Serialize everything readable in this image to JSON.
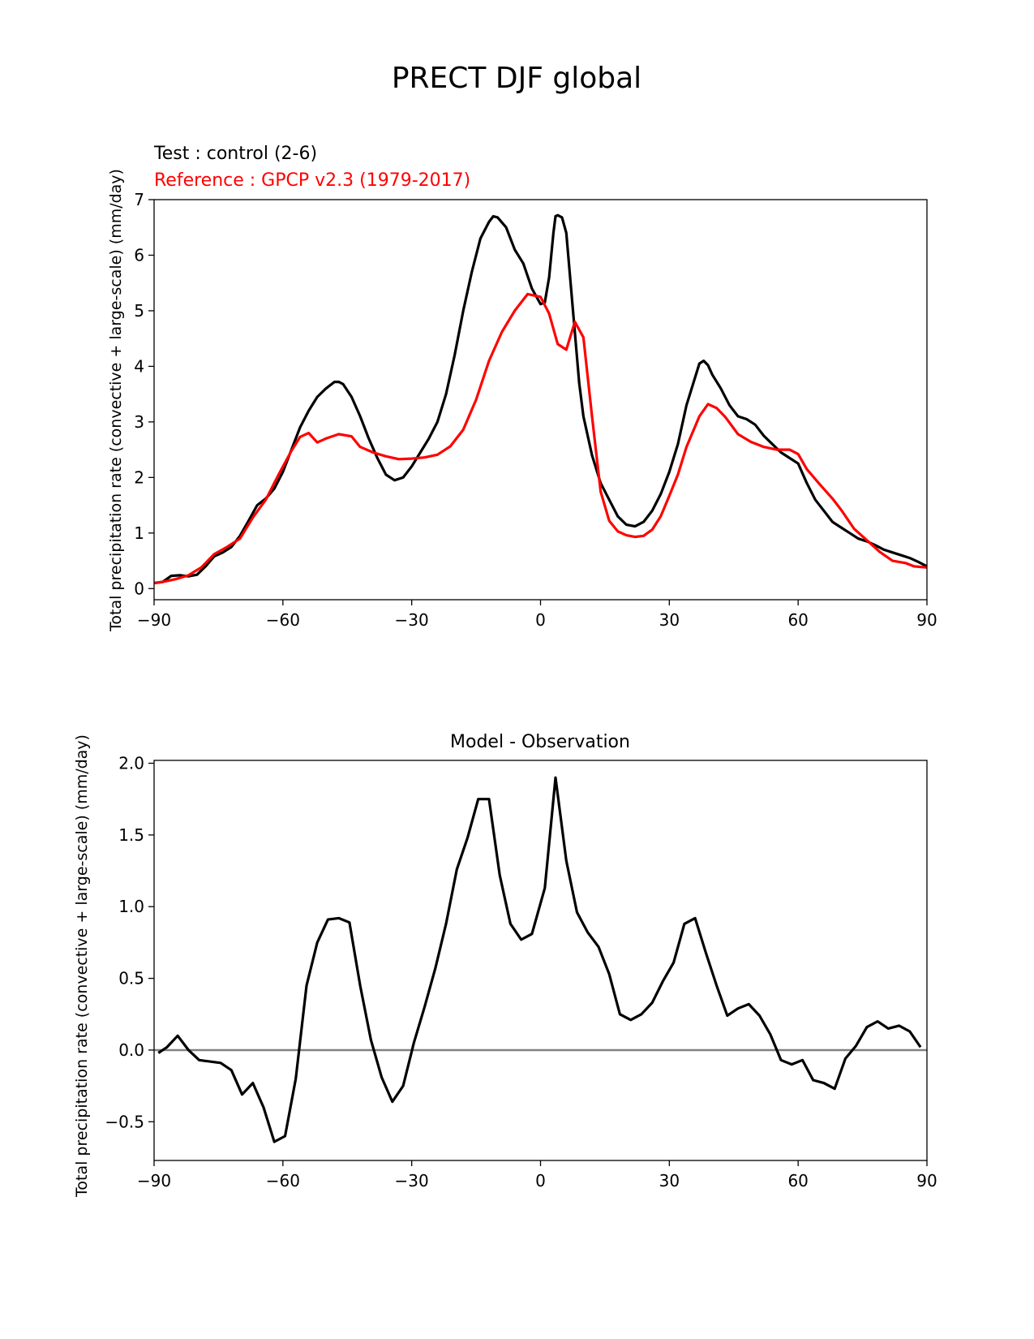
{
  "figure": {
    "title": "PRECT DJF global"
  },
  "chart_data": [
    {
      "type": "line",
      "test_label": "Test : control (2-6)",
      "reference_label": "Reference : GPCP v2.3 (1979-2017)",
      "xlabel": "",
      "ylabel": "Total precipitation rate (convective + large-scale) (mm/day)",
      "xlim": [
        -90,
        90
      ],
      "ylim": [
        -0.2,
        7
      ],
      "xticks": [
        -90,
        -60,
        -30,
        0,
        30,
        60,
        90
      ],
      "xtick_labels": [
        "−90",
        "−60",
        "−30",
        "0",
        "30",
        "60",
        "90"
      ],
      "yticks": [
        0,
        1,
        2,
        3,
        4,
        5,
        6,
        7
      ],
      "ytick_labels": [
        "0",
        "1",
        "2",
        "3",
        "4",
        "5",
        "6",
        "7"
      ],
      "series": [
        {
          "color": "#000000",
          "points": [
            [
              -90,
              0.1
            ],
            [
              -88,
              0.12
            ],
            [
              -86,
              0.23
            ],
            [
              -84,
              0.24
            ],
            [
              -82,
              0.22
            ],
            [
              -80,
              0.25
            ],
            [
              -78,
              0.4
            ],
            [
              -76,
              0.58
            ],
            [
              -74,
              0.65
            ],
            [
              -72,
              0.75
            ],
            [
              -70,
              0.95
            ],
            [
              -68,
              1.22
            ],
            [
              -66,
              1.5
            ],
            [
              -64,
              1.62
            ],
            [
              -62,
              1.8
            ],
            [
              -60,
              2.1
            ],
            [
              -58,
              2.5
            ],
            [
              -56,
              2.9
            ],
            [
              -54,
              3.2
            ],
            [
              -52,
              3.45
            ],
            [
              -50,
              3.6
            ],
            [
              -48,
              3.72
            ],
            [
              -47,
              3.72
            ],
            [
              -46,
              3.68
            ],
            [
              -44,
              3.45
            ],
            [
              -42,
              3.1
            ],
            [
              -40,
              2.7
            ],
            [
              -38,
              2.35
            ],
            [
              -36,
              2.05
            ],
            [
              -34,
              1.95
            ],
            [
              -32,
              2.0
            ],
            [
              -30,
              2.2
            ],
            [
              -28,
              2.45
            ],
            [
              -26,
              2.7
            ],
            [
              -24,
              3.0
            ],
            [
              -22,
              3.5
            ],
            [
              -20,
              4.2
            ],
            [
              -18,
              5.0
            ],
            [
              -16,
              5.7
            ],
            [
              -14,
              6.3
            ],
            [
              -12,
              6.6
            ],
            [
              -11,
              6.7
            ],
            [
              -10,
              6.68
            ],
            [
              -8,
              6.5
            ],
            [
              -6,
              6.1
            ],
            [
              -4,
              5.85
            ],
            [
              -2,
              5.4
            ],
            [
              0,
              5.12
            ],
            [
              1,
              5.15
            ],
            [
              2,
              5.6
            ],
            [
              3,
              6.4
            ],
            [
              3.5,
              6.7
            ],
            [
              4,
              6.72
            ],
            [
              5,
              6.68
            ],
            [
              6,
              6.4
            ],
            [
              7,
              5.5
            ],
            [
              8,
              4.6
            ],
            [
              9,
              3.7
            ],
            [
              10,
              3.1
            ],
            [
              12,
              2.4
            ],
            [
              14,
              1.9
            ],
            [
              16,
              1.6
            ],
            [
              18,
              1.3
            ],
            [
              20,
              1.15
            ],
            [
              22,
              1.12
            ],
            [
              24,
              1.2
            ],
            [
              26,
              1.4
            ],
            [
              28,
              1.7
            ],
            [
              30,
              2.1
            ],
            [
              32,
              2.6
            ],
            [
              34,
              3.3
            ],
            [
              36,
              3.8
            ],
            [
              37,
              4.05
            ],
            [
              38,
              4.1
            ],
            [
              39,
              4.02
            ],
            [
              40,
              3.85
            ],
            [
              42,
              3.6
            ],
            [
              44,
              3.3
            ],
            [
              46,
              3.1
            ],
            [
              48,
              3.05
            ],
            [
              50,
              2.95
            ],
            [
              52,
              2.75
            ],
            [
              54,
              2.6
            ],
            [
              56,
              2.45
            ],
            [
              58,
              2.35
            ],
            [
              60,
              2.25
            ],
            [
              62,
              1.9
            ],
            [
              64,
              1.6
            ],
            [
              66,
              1.4
            ],
            [
              68,
              1.2
            ],
            [
              70,
              1.1
            ],
            [
              72,
              1.0
            ],
            [
              74,
              0.9
            ],
            [
              76,
              0.85
            ],
            [
              78,
              0.78
            ],
            [
              80,
              0.7
            ],
            [
              82,
              0.65
            ],
            [
              84,
              0.6
            ],
            [
              86,
              0.55
            ],
            [
              88,
              0.48
            ],
            [
              90,
              0.4
            ]
          ]
        },
        {
          "color": "#ff0000",
          "points": [
            [
              -90,
              0.1
            ],
            [
              -88,
              0.12
            ],
            [
              -85,
              0.17
            ],
            [
              -82,
              0.24
            ],
            [
              -79,
              0.38
            ],
            [
              -76,
              0.62
            ],
            [
              -73,
              0.75
            ],
            [
              -70,
              0.9
            ],
            [
              -67,
              1.28
            ],
            [
              -64,
              1.6
            ],
            [
              -61,
              2.05
            ],
            [
              -58,
              2.48
            ],
            [
              -56,
              2.73
            ],
            [
              -54,
              2.8
            ],
            [
              -52,
              2.63
            ],
            [
              -50,
              2.7
            ],
            [
              -47,
              2.78
            ],
            [
              -44,
              2.74
            ],
            [
              -42,
              2.55
            ],
            [
              -39,
              2.45
            ],
            [
              -36,
              2.38
            ],
            [
              -33,
              2.33
            ],
            [
              -30,
              2.34
            ],
            [
              -27,
              2.36
            ],
            [
              -24,
              2.41
            ],
            [
              -21,
              2.56
            ],
            [
              -18,
              2.86
            ],
            [
              -15,
              3.4
            ],
            [
              -12,
              4.1
            ],
            [
              -9,
              4.62
            ],
            [
              -6,
              5.0
            ],
            [
              -3,
              5.3
            ],
            [
              0,
              5.25
            ],
            [
              2,
              4.95
            ],
            [
              4,
              4.4
            ],
            [
              6,
              4.3
            ],
            [
              8,
              4.8
            ],
            [
              10,
              4.52
            ],
            [
              12,
              3.1
            ],
            [
              14,
              1.75
            ],
            [
              16,
              1.22
            ],
            [
              18,
              1.03
            ],
            [
              20,
              0.96
            ],
            [
              22,
              0.93
            ],
            [
              24,
              0.95
            ],
            [
              26,
              1.06
            ],
            [
              28,
              1.3
            ],
            [
              30,
              1.67
            ],
            [
              32,
              2.05
            ],
            [
              34,
              2.55
            ],
            [
              37,
              3.1
            ],
            [
              39,
              3.32
            ],
            [
              41,
              3.25
            ],
            [
              43,
              3.09
            ],
            [
              46,
              2.78
            ],
            [
              49,
              2.64
            ],
            [
              52,
              2.55
            ],
            [
              55,
              2.5
            ],
            [
              58,
              2.5
            ],
            [
              60,
              2.42
            ],
            [
              62,
              2.15
            ],
            [
              65,
              1.88
            ],
            [
              68,
              1.62
            ],
            [
              70,
              1.42
            ],
            [
              73,
              1.08
            ],
            [
              76,
              0.87
            ],
            [
              79,
              0.66
            ],
            [
              82,
              0.5
            ],
            [
              85,
              0.46
            ],
            [
              87,
              0.4
            ],
            [
              90,
              0.38
            ]
          ]
        }
      ]
    },
    {
      "type": "line",
      "title": "Model - Observation",
      "xlabel": "",
      "ylabel": "Total precipitation rate (convective + large-scale) (mm/day)",
      "xlim": [
        -90,
        90
      ],
      "ylim": [
        -0.77,
        2.02
      ],
      "xticks": [
        -90,
        -60,
        -30,
        0,
        30,
        60,
        90
      ],
      "xtick_labels": [
        "−90",
        "−60",
        "−30",
        "0",
        "30",
        "60",
        "90"
      ],
      "yticks": [
        -0.5,
        0.0,
        0.5,
        1.0,
        1.5,
        2.0
      ],
      "ytick_labels": [
        "−0.5",
        "0.0",
        "0.5",
        "1.0",
        "1.5",
        "2.0"
      ],
      "zero_line": true,
      "series": [
        {
          "color": "#000000",
          "points": [
            [
              -89,
              -0.02
            ],
            [
              -87,
              0.02
            ],
            [
              -84.5,
              0.1
            ],
            [
              -82,
              0.0
            ],
            [
              -79.5,
              -0.07
            ],
            [
              -77,
              -0.08
            ],
            [
              -74.5,
              -0.09
            ],
            [
              -72,
              -0.14
            ],
            [
              -69.5,
              -0.31
            ],
            [
              -67,
              -0.23
            ],
            [
              -64.5,
              -0.4
            ],
            [
              -62,
              -0.64
            ],
            [
              -59.5,
              -0.6
            ],
            [
              -57,
              -0.2
            ],
            [
              -54.5,
              0.45
            ],
            [
              -52,
              0.75
            ],
            [
              -49.5,
              0.91
            ],
            [
              -47,
              0.92
            ],
            [
              -44.5,
              0.89
            ],
            [
              -42,
              0.45
            ],
            [
              -39.5,
              0.07
            ],
            [
              -37,
              -0.19
            ],
            [
              -34.5,
              -0.36
            ],
            [
              -32,
              -0.25
            ],
            [
              -29.5,
              0.05
            ],
            [
              -27,
              0.3
            ],
            [
              -24.5,
              0.57
            ],
            [
              -22,
              0.88
            ],
            [
              -19.5,
              1.26
            ],
            [
              -17,
              1.48
            ],
            [
              -14.5,
              1.75
            ],
            [
              -12,
              1.75
            ],
            [
              -9.5,
              1.22
            ],
            [
              -7,
              0.88
            ],
            [
              -4.5,
              0.77
            ],
            [
              -2,
              0.81
            ],
            [
              1,
              1.13
            ],
            [
              3.5,
              1.9
            ],
            [
              6,
              1.32
            ],
            [
              8.5,
              0.96
            ],
            [
              11,
              0.82
            ],
            [
              13.5,
              0.72
            ],
            [
              16,
              0.53
            ],
            [
              18.5,
              0.25
            ],
            [
              21,
              0.21
            ],
            [
              23.5,
              0.25
            ],
            [
              26,
              0.33
            ],
            [
              28.5,
              0.48
            ],
            [
              31,
              0.61
            ],
            [
              33.5,
              0.88
            ],
            [
              36,
              0.92
            ],
            [
              38.5,
              0.68
            ],
            [
              41,
              0.45
            ],
            [
              43.5,
              0.24
            ],
            [
              46,
              0.29
            ],
            [
              48.5,
              0.32
            ],
            [
              51,
              0.24
            ],
            [
              53.5,
              0.11
            ],
            [
              56,
              -0.07
            ],
            [
              58.5,
              -0.1
            ],
            [
              61,
              -0.07
            ],
            [
              63.5,
              -0.21
            ],
            [
              66,
              -0.23
            ],
            [
              68.5,
              -0.27
            ],
            [
              71,
              -0.06
            ],
            [
              73.5,
              0.03
            ],
            [
              76,
              0.16
            ],
            [
              78.5,
              0.2
            ],
            [
              81,
              0.15
            ],
            [
              83.5,
              0.17
            ],
            [
              86,
              0.13
            ],
            [
              88.5,
              0.02
            ]
          ]
        }
      ]
    }
  ]
}
